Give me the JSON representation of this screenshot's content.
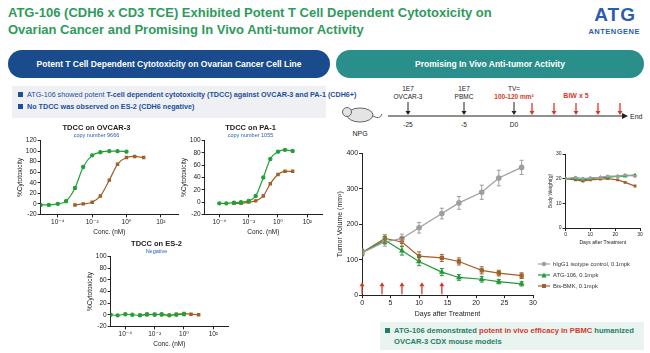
{
  "header": {
    "title_lines": [
      "ATG-106 (CDH6 x CD3 TCE) Exhibited Potent T Cell Dependent Cytotoxicity on",
      "Ovarian Cancer and Promising In Vivo Anti-tumor Activity"
    ],
    "logo": {
      "mark": "ATG",
      "name": "ANTENGENE"
    }
  },
  "left_panel": {
    "heading": "Potent T Cell Dependent Cytotoxicity on Ovarian Cancer Cell Line",
    "bullets": [
      [
        {
          "text": "ATG-106 showed potent "
        },
        {
          "text": "T-cell dependent cytotoxicity (TDCC) against OVCAR-3 and PA-1 (CDH6+)",
          "bold": true
        }
      ],
      [
        {
          "text": "No TDCC was observed on ES-2 (CDH6 negative)",
          "bold": true
        }
      ]
    ]
  },
  "right_panel": {
    "heading": "Promising In Vivo Anti-tumor Activity",
    "timeline": {
      "model": "NPG",
      "events": [
        {
          "above": [
            {
              "text": "1E7"
            },
            {
              "text": "OVCAR-3"
            }
          ],
          "below": "-25"
        },
        {
          "above": [
            {
              "text": "1E7"
            },
            {
              "text": "PBMC"
            }
          ],
          "below": "-5"
        },
        {
          "above": [
            {
              "text": "TV="
            },
            {
              "text": "100-120 mm³",
              "highlight": true
            }
          ],
          "below": "D0"
        }
      ],
      "dosing": "BIW x 5",
      "end": "End"
    },
    "callout": [
      {
        "text": "ATG-106 demonstrated "
      },
      {
        "text": "potent in vivo efficacy in PBMC",
        "highlight": true
      },
      {
        "text": " humanized OVCAR-3 CDX mouse models"
      }
    ]
  },
  "chart_data": [
    {
      "type": "line",
      "title": "TDCC on OVCAR-3",
      "subtitle": "copy number 9666",
      "x_label": "Conc. (nM)",
      "y_label": "%Cytotoxicity",
      "log": "x",
      "grid": false,
      "xlim": [
        1e-05,
        1000
      ],
      "xticks": [
        {
          "value": 0.0001,
          "label": "10⁻⁴"
        },
        {
          "value": 0.01,
          "label": "10⁻²"
        },
        {
          "value": 1,
          "label": "10⁰"
        },
        {
          "value": 100,
          "label": "10²"
        }
      ],
      "ylim": [
        -20,
        120
      ],
      "yticks": [
        -20,
        0,
        20,
        40,
        60,
        80,
        100,
        120
      ],
      "series": [
        {
          "color": "#22a03a",
          "marker": "circle",
          "line_style": "smooth",
          "x": [
            1e-05,
            3e-05,
            0.0001,
            0.0003,
            0.001,
            0.003,
            0.01,
            0.03,
            0.1,
            0.3,
            1
          ],
          "values": [
            -2,
            -2,
            0,
            5,
            30,
            70,
            92,
            98,
            100,
            100,
            99
          ]
        },
        {
          "color": "#a06028",
          "marker": "square",
          "line_style": "smooth",
          "x": [
            0.001,
            0.003,
            0.01,
            0.03,
            0.1,
            0.3,
            1,
            3,
            10
          ],
          "values": [
            -2,
            0,
            3,
            15,
            45,
            75,
            88,
            90,
            88
          ]
        }
      ]
    },
    {
      "type": "line",
      "title": "TDCC on PA-1",
      "subtitle": "copy number 1055",
      "x_label": "Conc. (nM)",
      "y_label": "%Cytotoxicity",
      "log": "x",
      "grid": false,
      "xlim": [
        1e-05,
        1000
      ],
      "xticks": [
        {
          "value": 0.0001,
          "label": "10⁻⁴"
        },
        {
          "value": 0.01,
          "label": "10⁻²"
        },
        {
          "value": 1,
          "label": "10⁰"
        },
        {
          "value": 100,
          "label": "10²"
        }
      ],
      "ylim": [
        -20,
        100
      ],
      "yticks": [
        -20,
        0,
        20,
        40,
        60,
        80,
        100
      ],
      "series": [
        {
          "color": "#22a03a",
          "marker": "circle",
          "line_style": "smooth",
          "x": [
            0.0001,
            0.0003,
            0.001,
            0.003,
            0.01,
            0.03,
            0.1,
            0.3,
            1,
            3,
            10
          ],
          "values": [
            -2,
            -2,
            -1,
            0,
            2,
            10,
            40,
            70,
            82,
            85,
            83
          ]
        },
        {
          "color": "#a06028",
          "marker": "square",
          "line_style": "smooth",
          "x": [
            0.001,
            0.003,
            0.01,
            0.03,
            0.1,
            0.3,
            1,
            3,
            10
          ],
          "values": [
            -2,
            -2,
            0,
            2,
            10,
            30,
            45,
            50,
            50
          ]
        }
      ]
    },
    {
      "type": "line",
      "title": "TDCC on ES-2",
      "subtitle": "Negative",
      "x_label": "Conc. (nM)",
      "y_label": "%Cytotoxicity",
      "log": "x",
      "grid": false,
      "xlim": [
        1e-05,
        1000
      ],
      "xticks": [
        {
          "value": 0.0001,
          "label": "10⁻⁴"
        },
        {
          "value": 0.01,
          "label": "10⁻²"
        },
        {
          "value": 1,
          "label": "10⁰"
        },
        {
          "value": 100,
          "label": "10²"
        }
      ],
      "ylim": [
        -20,
        100
      ],
      "yticks": [
        -20,
        0,
        20,
        40,
        60,
        80,
        100
      ],
      "series": [
        {
          "color": "#22a03a",
          "marker": "circle",
          "line_style": "smooth",
          "x": [
            1e-05,
            3e-05,
            0.0001,
            0.0003,
            0.001,
            0.003,
            0.01,
            0.03,
            0.1,
            0.3,
            1
          ],
          "values": [
            0,
            -1,
            1,
            0,
            -1,
            1,
            0,
            1,
            -1,
            0,
            1
          ]
        },
        {
          "color": "#a06028",
          "marker": "square",
          "line_style": "smooth",
          "x": [
            0.001,
            0.003,
            0.01,
            0.03,
            0.1,
            0.3,
            1,
            3,
            10
          ],
          "values": [
            -1,
            0,
            1,
            0,
            -1,
            1,
            2,
            1,
            0
          ]
        }
      ]
    },
    {
      "type": "line",
      "x_label": "Days after Treatment",
      "y_label": "Tumor Volume (mm³)",
      "grid": false,
      "legend": "right",
      "x": [
        0,
        4,
        7,
        10,
        14,
        17,
        21,
        24,
        28
      ],
      "xlim": [
        0,
        30
      ],
      "xticks": [
        0,
        5,
        10,
        15,
        20,
        25,
        30
      ],
      "ylim": [
        0,
        400
      ],
      "yticks": [
        0,
        100,
        200,
        300,
        400
      ],
      "dose_days": [
        0,
        3.5,
        7,
        10.5,
        14
      ],
      "series": [
        {
          "name": "hIgG1 isotype control, 0.1mpk",
          "color": "#9e9e9e",
          "marker": "circle",
          "values": [
            120,
            150,
            160,
            190,
            230,
            260,
            290,
            330,
            360
          ],
          "errors": [
            10,
            12,
            12,
            15,
            15,
            18,
            20,
            22,
            20
          ]
        },
        {
          "name": "ATG-106, 0.1mpk",
          "color": "#1f9a3a",
          "marker": "triangle",
          "values": [
            120,
            155,
            125,
            95,
            65,
            50,
            45,
            38,
            32
          ],
          "errors": [
            8,
            10,
            12,
            12,
            10,
            8,
            8,
            6,
            6
          ]
        },
        {
          "name": "Bis-BMK, 0.1mpk",
          "color": "#a0622a",
          "marker": "square",
          "values": [
            120,
            160,
            150,
            110,
            105,
            95,
            70,
            62,
            55
          ],
          "errors": [
            8,
            10,
            12,
            12,
            10,
            10,
            10,
            8,
            8
          ]
        }
      ]
    },
    {
      "type": "line",
      "x_label": "Days after Treatment",
      "y_label": "Body Weight(g)",
      "grid": false,
      "x": [
        0,
        4,
        7,
        10,
        14,
        17,
        21,
        24,
        28
      ],
      "xlim": [
        0,
        30
      ],
      "xticks": [
        0,
        10,
        20,
        30
      ],
      "ylim": [
        0,
        30
      ],
      "yticks": [
        0,
        10,
        20,
        30
      ],
      "series": [
        {
          "color": "#9e9e9e",
          "marker": "circle",
          "values": [
            20,
            20.5,
            20,
            20.3,
            20.5,
            21,
            21,
            21.5,
            21
          ]
        },
        {
          "color": "#1f9a3a",
          "marker": "triangle",
          "values": [
            20,
            20,
            19.5,
            20,
            20.5,
            20.5,
            21,
            21,
            21.5
          ]
        },
        {
          "color": "#a0622a",
          "marker": "square",
          "values": [
            20,
            19.5,
            19,
            19.5,
            19.8,
            20,
            19.5,
            18.5,
            17
          ]
        }
      ]
    }
  ]
}
